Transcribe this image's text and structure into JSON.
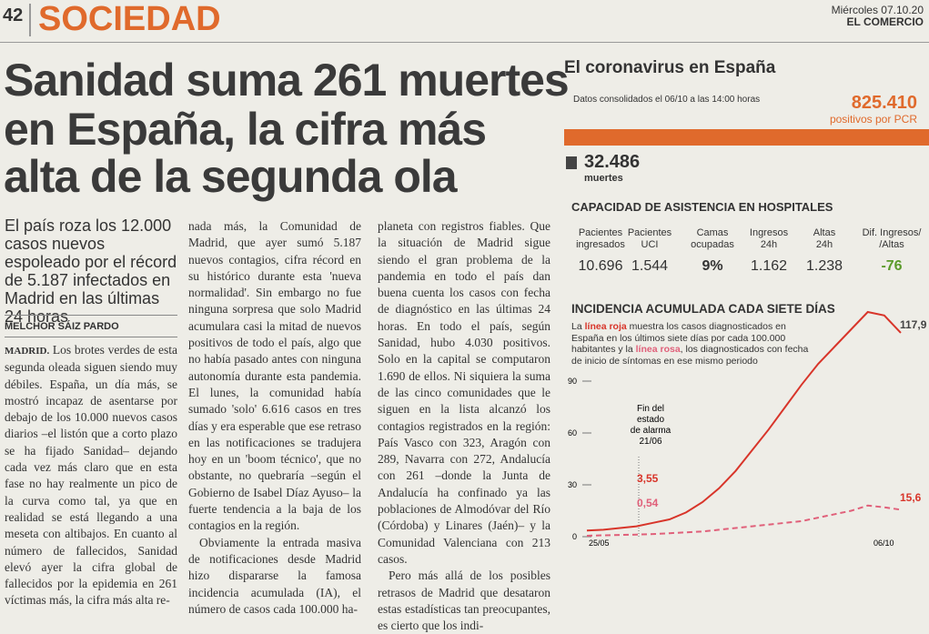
{
  "header": {
    "page": "42",
    "section": "SOCIEDAD",
    "date": "Miércoles 07.10.20",
    "paper": "EL COMERCIO"
  },
  "article": {
    "headline": [
      "Sanidad suma 261 muertes",
      "en España, la cifra más",
      "alta de la segunda ola"
    ],
    "subhead": "El país roza los 12.000 casos nuevos espoleado por el récord de 5.187 infectados en Madrid en las últimas 24 horas",
    "byline": "MELCHOR SÁIZ PARDO",
    "dateline": "MADRID.",
    "columns": [
      [
        "Los brotes verdes de esta segunda oleada siguen siendo muy débiles. España, un día más, se mostró incapaz de asentarse por debajo de los 10.000 nuevos casos diarios –el listón que a corto plazo se ha fijado Sanidad– dejando cada vez más claro que en esta fase no hay realmente un pico de la curva como tal, ya que en realidad se está llegando a una meseta con altibajos. En cuanto al número de fallecidos, Sanidad elevó ayer la cifra global de fallecidos por la epidemia en 261 víctimas más, la cifra más alta re-"
      ],
      [
        "nada más, la Comunidad de Madrid, que ayer sumó 5.187 nuevos contagios, cifra récord en su histórico durante esta 'nueva normalidad'. Sin embargo no fue ninguna sorpresa que solo Madrid acumulara casi la mitad de nuevos positivos de todo el país, algo que no había pasado antes con ninguna autonomía durante esta pandemia. El lunes, la comunidad había sumado 'solo' 6.616 casos en tres días y era esperable que ese retraso en las notificaciones se tradujera hoy en un 'boom técnico', que no obstante, no quebraría –según el Gobierno de Isabel Díaz Ayuso– la fuerte tendencia a la baja de los contagios en la región.",
        "Obviamente la entrada masiva de notificaciones desde Madrid hizo dispararse la famosa incidencia acumulada (IA), el número de casos cada 100.000 ha-"
      ],
      [
        "planeta con registros fiables. Que la situación de Madrid sigue siendo el gran problema de la pandemia en todo el país dan buena cuenta los casos con fecha de diagnóstico en las últimas 24 horas. En todo el país, según Sanidad, hubo 4.030 positivos. Solo en la capital se computaron 1.690 de ellos. Ni siquiera la suma de las cinco comunidades que le siguen en la lista alcanzó los contagios registrados en la región: País Vasco con 323, Aragón con 289, Navarra con 272, Andalucía con 261 –donde la Junta de Andalucía ha confinado ya las poblaciones de Almodóvar del Río (Córdoba) y Linares (Jaén)– y la Comunidad Valenciana con 213 casos.",
        "Pero más allá de los posibles retrasos de Madrid que desataron estas estadísticas tan preocupantes, es cierto que los indi-"
      ]
    ]
  },
  "infographic": {
    "title": "El coronavirus en España",
    "note": "Datos consolidados el 06/10 a las 14:00 horas",
    "positives": "825.410",
    "positives_label": "positivos por PCR",
    "deaths": "32.486",
    "deaths_label": "muertes",
    "hospital_title": "CAPACIDAD DE ASISTENCIA EN HOSPITALES",
    "table": {
      "headers": [
        [
          "Pacientes",
          "ingresados"
        ],
        [
          "Pacientes",
          "UCI"
        ],
        [
          "Camas",
          "ocupadas"
        ],
        [
          "Ingresos",
          "24h"
        ],
        [
          "Altas",
          "24h"
        ],
        [
          "Dif. Ingresos/",
          "/Altas"
        ]
      ],
      "values": [
        "10.696",
        "1.544",
        "9%",
        "1.162",
        "1.238",
        "-76"
      ]
    },
    "incidence_title": "INCIDENCIA ACUMULADA CADA SIETE DÍAS",
    "incidence_text": [
      "La ",
      "línea roja",
      " muestra los casos diagnosticados en España en los últimos siete días por cada 100.000 habitantes y la ",
      "línea rosa",
      ", los diagnosticados con fecha de inicio de síntomas en ese mismo periodo"
    ],
    "chart": {
      "type": "line",
      "categories": [
        "25/05",
        null,
        null,
        null,
        null,
        null,
        null,
        null,
        null,
        null,
        null,
        null,
        null,
        null,
        null,
        null,
        null,
        null,
        null,
        "06/10"
      ],
      "series": [
        {
          "color": "#d8352a",
          "values": [
            3.55,
            4,
            5,
            6,
            8,
            10,
            14,
            20,
            28,
            38,
            50,
            62,
            75,
            88,
            100,
            110,
            120,
            130,
            128,
            117.9
          ]
        },
        {
          "color": "#e0607a",
          "values": [
            0.54,
            0.8,
            1,
            1.2,
            1.5,
            2,
            2.5,
            3,
            4,
            5,
            6,
            7,
            8,
            9,
            11,
            13,
            15,
            18,
            17,
            15.6
          ]
        }
      ],
      "ylim": [
        0,
        140
      ],
      "yticks": [
        0,
        30,
        60,
        90
      ],
      "annotations": [
        "Fin del",
        "estado",
        "de alarma",
        "21/06"
      ],
      "labels": [
        "3,55",
        "0,54",
        "117,9",
        "15,6"
      ]
    }
  }
}
